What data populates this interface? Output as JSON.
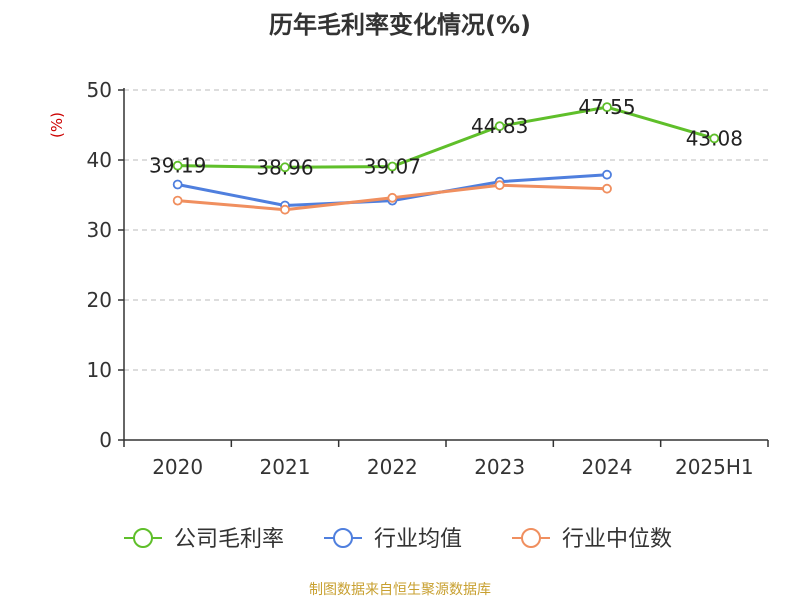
{
  "chart_data": {
    "type": "line",
    "title": "历年毛利率变化情况(%)",
    "ylabel": "(%)",
    "xlabel": "",
    "categories": [
      "2020",
      "2021",
      "2022",
      "2023",
      "2024",
      "2025H1"
    ],
    "ylim": [
      0,
      50
    ],
    "yticks": [
      0,
      10,
      20,
      30,
      40,
      50
    ],
    "grid": true,
    "legend_position": "bottom",
    "series": [
      {
        "name": "公司毛利率",
        "color": "#5fbf2a",
        "values": [
          39.19,
          38.96,
          39.07,
          44.83,
          47.55,
          43.08
        ],
        "labels": [
          "39.19",
          "38.96",
          "39.07",
          "44.83",
          "47.55",
          "43.08"
        ]
      },
      {
        "name": "行业均值",
        "color": "#4f7fde",
        "values": [
          36.5,
          33.5,
          34.2,
          36.9,
          37.9,
          null
        ]
      },
      {
        "name": "行业中位数",
        "color": "#f08f5f",
        "values": [
          34.2,
          32.9,
          34.6,
          36.4,
          35.9,
          null
        ]
      }
    ]
  },
  "source": "制图数据来自恒生聚源数据库"
}
